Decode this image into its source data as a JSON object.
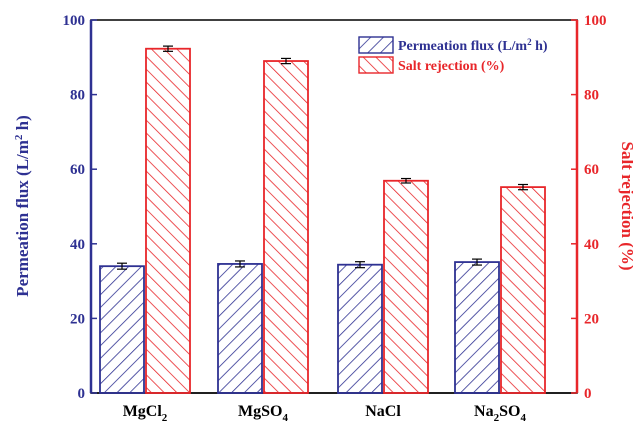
{
  "chart_data": {
    "type": "bar",
    "categories": [
      {
        "base": "MgCl",
        "sub": "2",
        "rest": ""
      },
      {
        "base": "MgSO",
        "sub": "4",
        "rest": ""
      },
      {
        "base": "NaCl",
        "sub": "",
        "rest": ""
      },
      {
        "base": "Na",
        "sub": "2",
        "rest": "SO",
        "sub2": "4"
      }
    ],
    "series": [
      {
        "name": "Permeation flux (L/m",
        "name_sup": "2",
        "name_rest": " h)",
        "axis": "left",
        "color": "#2e3192",
        "values": [
          34.0,
          34.6,
          34.4,
          35.1
        ],
        "errors": [
          0.8,
          0.8,
          0.8,
          0.8
        ]
      },
      {
        "name": "Salt rejection (%)",
        "axis": "right",
        "color": "#e8262a",
        "values": [
          92.3,
          89.0,
          56.9,
          55.2
        ],
        "errors": [
          0.7,
          0.7,
          0.6,
          0.7
        ]
      }
    ],
    "ylabel_left": {
      "text": "Permeation flux (L/m",
      "sup": "2",
      "rest": " h)"
    },
    "ylabel_right": "Salt rejection (%)",
    "ylim_left": [
      0,
      100
    ],
    "ylim_right": [
      0,
      100
    ],
    "yticks": [
      0,
      20,
      40,
      60,
      80,
      100
    ],
    "grid": false,
    "legend_position": "top-right",
    "colors": {
      "left_axis": "#2e3192",
      "right_axis": "#e8262a",
      "axis": "#000000"
    }
  }
}
